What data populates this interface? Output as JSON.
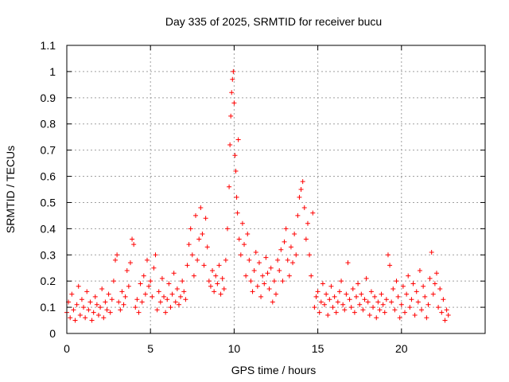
{
  "chart_data": {
    "type": "scatter",
    "title": "Day 335 of 2025, SRMTID for receiver bucu",
    "xlabel": "GPS time / hours",
    "ylabel": "SRMTID / TECUs",
    "xlim": [
      0,
      25
    ],
    "ylim": [
      0,
      1.1
    ],
    "xticks": [
      0,
      5,
      10,
      15,
      20
    ],
    "yticks": [
      0,
      0.1,
      0.2,
      0.3,
      0.4,
      0.5,
      0.6,
      0.7,
      0.8,
      0.9,
      1,
      1.1
    ],
    "xtick_labels": [
      "0",
      "5",
      "10",
      "15",
      "20"
    ],
    "ytick_labels": [
      "0",
      "0.1",
      "0.2",
      "0.3",
      "0.4",
      "0.5",
      "0.6",
      "0.7",
      "0.8",
      "0.9",
      "1",
      "1.1"
    ],
    "grid": true,
    "marker": "+",
    "color": "#ff0000",
    "series": [
      {
        "name": "SRMTID",
        "points": [
          [
            0.0,
            0.08
          ],
          [
            0.1,
            0.12
          ],
          [
            0.2,
            0.06
          ],
          [
            0.3,
            0.15
          ],
          [
            0.4,
            0.09
          ],
          [
            0.5,
            0.05
          ],
          [
            0.6,
            0.11
          ],
          [
            0.7,
            0.18
          ],
          [
            0.8,
            0.07
          ],
          [
            0.9,
            0.13
          ],
          [
            1.0,
            0.1
          ],
          [
            1.1,
            0.06
          ],
          [
            1.2,
            0.16
          ],
          [
            1.3,
            0.09
          ],
          [
            1.4,
            0.12
          ],
          [
            1.5,
            0.05
          ],
          [
            1.6,
            0.08
          ],
          [
            1.7,
            0.14
          ],
          [
            1.8,
            0.11
          ],
          [
            1.9,
            0.07
          ],
          [
            2.0,
            0.1
          ],
          [
            2.1,
            0.17
          ],
          [
            2.2,
            0.06
          ],
          [
            2.3,
            0.12
          ],
          [
            2.4,
            0.09
          ],
          [
            2.5,
            0.15
          ],
          [
            2.6,
            0.08
          ],
          [
            2.7,
            0.13
          ],
          [
            2.8,
            0.2
          ],
          [
            2.9,
            0.28
          ],
          [
            3.0,
            0.3
          ],
          [
            3.1,
            0.12
          ],
          [
            3.2,
            0.09
          ],
          [
            3.3,
            0.16
          ],
          [
            3.4,
            0.11
          ],
          [
            3.5,
            0.14
          ],
          [
            3.6,
            0.24
          ],
          [
            3.7,
            0.18
          ],
          [
            3.8,
            0.27
          ],
          [
            3.9,
            0.36
          ],
          [
            4.0,
            0.34
          ],
          [
            4.1,
            0.1
          ],
          [
            4.2,
            0.13
          ],
          [
            4.3,
            0.08
          ],
          [
            4.4,
            0.19
          ],
          [
            4.5,
            0.12
          ],
          [
            4.6,
            0.22
          ],
          [
            4.7,
            0.15
          ],
          [
            4.8,
            0.28
          ],
          [
            4.9,
            0.18
          ],
          [
            5.0,
            0.2
          ],
          [
            5.1,
            0.14
          ],
          [
            5.2,
            0.25
          ],
          [
            5.3,
            0.3
          ],
          [
            5.4,
            0.09
          ],
          [
            5.5,
            0.16
          ],
          [
            5.6,
            0.12
          ],
          [
            5.7,
            0.21
          ],
          [
            5.8,
            0.14
          ],
          [
            5.9,
            0.08
          ],
          [
            6.0,
            0.13
          ],
          [
            6.1,
            0.19
          ],
          [
            6.2,
            0.1
          ],
          [
            6.3,
            0.15
          ],
          [
            6.4,
            0.23
          ],
          [
            6.5,
            0.12
          ],
          [
            6.6,
            0.17
          ],
          [
            6.7,
            0.11
          ],
          [
            6.8,
            0.14
          ],
          [
            6.9,
            0.2
          ],
          [
            7.0,
            0.16
          ],
          [
            7.1,
            0.13
          ],
          [
            7.2,
            0.26
          ],
          [
            7.3,
            0.34
          ],
          [
            7.4,
            0.4
          ],
          [
            7.5,
            0.3
          ],
          [
            7.6,
            0.22
          ],
          [
            7.7,
            0.45
          ],
          [
            7.8,
            0.28
          ],
          [
            7.9,
            0.36
          ],
          [
            8.0,
            0.48
          ],
          [
            8.1,
            0.38
          ],
          [
            8.2,
            0.26
          ],
          [
            8.3,
            0.44
          ],
          [
            8.4,
            0.33
          ],
          [
            8.5,
            0.2
          ],
          [
            8.6,
            0.18
          ],
          [
            8.7,
            0.24
          ],
          [
            8.8,
            0.16
          ],
          [
            8.9,
            0.22
          ],
          [
            9.0,
            0.19
          ],
          [
            9.1,
            0.26
          ],
          [
            9.2,
            0.15
          ],
          [
            9.3,
            0.21
          ],
          [
            9.4,
            0.17
          ],
          [
            9.5,
            0.28
          ],
          [
            9.6,
            0.4
          ],
          [
            9.7,
            0.56
          ],
          [
            9.75,
            0.72
          ],
          [
            9.8,
            0.83
          ],
          [
            9.85,
            0.92
          ],
          [
            9.9,
            0.97
          ],
          [
            9.95,
            1.0
          ],
          [
            10.0,
            0.88
          ],
          [
            10.05,
            0.68
          ],
          [
            10.1,
            0.62
          ],
          [
            10.15,
            0.52
          ],
          [
            10.2,
            0.46
          ],
          [
            10.25,
            0.74
          ],
          [
            10.3,
            0.36
          ],
          [
            10.4,
            0.3
          ],
          [
            10.5,
            0.42
          ],
          [
            10.6,
            0.34
          ],
          [
            10.7,
            0.22
          ],
          [
            10.8,
            0.38
          ],
          [
            10.9,
            0.28
          ],
          [
            11.0,
            0.2
          ],
          [
            11.1,
            0.16
          ],
          [
            11.2,
            0.24
          ],
          [
            11.3,
            0.31
          ],
          [
            11.4,
            0.18
          ],
          [
            11.5,
            0.27
          ],
          [
            11.6,
            0.14
          ],
          [
            11.7,
            0.22
          ],
          [
            11.8,
            0.19
          ],
          [
            11.9,
            0.29
          ],
          [
            12.0,
            0.23
          ],
          [
            12.1,
            0.17
          ],
          [
            12.2,
            0.25
          ],
          [
            12.3,
            0.12
          ],
          [
            12.4,
            0.2
          ],
          [
            12.5,
            0.15
          ],
          [
            12.6,
            0.28
          ],
          [
            12.7,
            0.24
          ],
          [
            12.8,
            0.32
          ],
          [
            12.9,
            0.2
          ],
          [
            13.0,
            0.35
          ],
          [
            13.1,
            0.4
          ],
          [
            13.2,
            0.28
          ],
          [
            13.3,
            0.22
          ],
          [
            13.4,
            0.33
          ],
          [
            13.5,
            0.27
          ],
          [
            13.6,
            0.38
          ],
          [
            13.7,
            0.3
          ],
          [
            13.8,
            0.45
          ],
          [
            13.9,
            0.52
          ],
          [
            14.0,
            0.55
          ],
          [
            14.1,
            0.58
          ],
          [
            14.2,
            0.48
          ],
          [
            14.3,
            0.36
          ],
          [
            14.4,
            0.42
          ],
          [
            14.5,
            0.3
          ],
          [
            14.6,
            0.22
          ],
          [
            14.7,
            0.46
          ],
          [
            14.8,
            0.1
          ],
          [
            14.9,
            0.14
          ],
          [
            15.0,
            0.16
          ],
          [
            15.1,
            0.08
          ],
          [
            15.2,
            0.12
          ],
          [
            15.3,
            0.19
          ],
          [
            15.4,
            0.11
          ],
          [
            15.5,
            0.15
          ],
          [
            15.6,
            0.07
          ],
          [
            15.7,
            0.13
          ],
          [
            15.8,
            0.18
          ],
          [
            15.9,
            0.1
          ],
          [
            16.0,
            0.14
          ],
          [
            16.1,
            0.08
          ],
          [
            16.2,
            0.12
          ],
          [
            16.3,
            0.16
          ],
          [
            16.4,
            0.2
          ],
          [
            16.5,
            0.11
          ],
          [
            16.6,
            0.09
          ],
          [
            16.7,
            0.15
          ],
          [
            16.8,
            0.27
          ],
          [
            16.9,
            0.13
          ],
          [
            17.0,
            0.1
          ],
          [
            17.1,
            0.17
          ],
          [
            17.2,
            0.08
          ],
          [
            17.3,
            0.14
          ],
          [
            17.4,
            0.19
          ],
          [
            17.5,
            0.11
          ],
          [
            17.6,
            0.15
          ],
          [
            17.7,
            0.09
          ],
          [
            17.8,
            0.13
          ],
          [
            17.9,
            0.21
          ],
          [
            18.0,
            0.12
          ],
          [
            18.1,
            0.07
          ],
          [
            18.2,
            0.16
          ],
          [
            18.3,
            0.1
          ],
          [
            18.4,
            0.14
          ],
          [
            18.5,
            0.06
          ],
          [
            18.6,
            0.12
          ],
          [
            18.7,
            0.09
          ],
          [
            18.8,
            0.15
          ],
          [
            18.9,
            0.11
          ],
          [
            19.0,
            0.08
          ],
          [
            19.1,
            0.13
          ],
          [
            19.2,
            0.3
          ],
          [
            19.3,
            0.26
          ],
          [
            19.4,
            0.12
          ],
          [
            19.5,
            0.17
          ],
          [
            19.6,
            0.09
          ],
          [
            19.7,
            0.2
          ],
          [
            19.8,
            0.14
          ],
          [
            19.9,
            0.06
          ],
          [
            20.0,
            0.11
          ],
          [
            20.1,
            0.18
          ],
          [
            20.2,
            0.08
          ],
          [
            20.3,
            0.15
          ],
          [
            20.4,
            0.22
          ],
          [
            20.5,
            0.1
          ],
          [
            20.6,
            0.13
          ],
          [
            20.7,
            0.19
          ],
          [
            20.8,
            0.07
          ],
          [
            20.9,
            0.16
          ],
          [
            21.0,
            0.12
          ],
          [
            21.1,
            0.24
          ],
          [
            21.2,
            0.09
          ],
          [
            21.3,
            0.18
          ],
          [
            21.4,
            0.14
          ],
          [
            21.5,
            0.06
          ],
          [
            21.6,
            0.11
          ],
          [
            21.7,
            0.21
          ],
          [
            21.8,
            0.31
          ],
          [
            21.9,
            0.15
          ],
          [
            22.0,
            0.19
          ],
          [
            22.1,
            0.23
          ],
          [
            22.2,
            0.1
          ],
          [
            22.3,
            0.17
          ],
          [
            22.4,
            0.08
          ],
          [
            22.5,
            0.13
          ],
          [
            22.6,
            0.05
          ],
          [
            22.7,
            0.09
          ],
          [
            22.8,
            0.07
          ]
        ]
      }
    ]
  }
}
